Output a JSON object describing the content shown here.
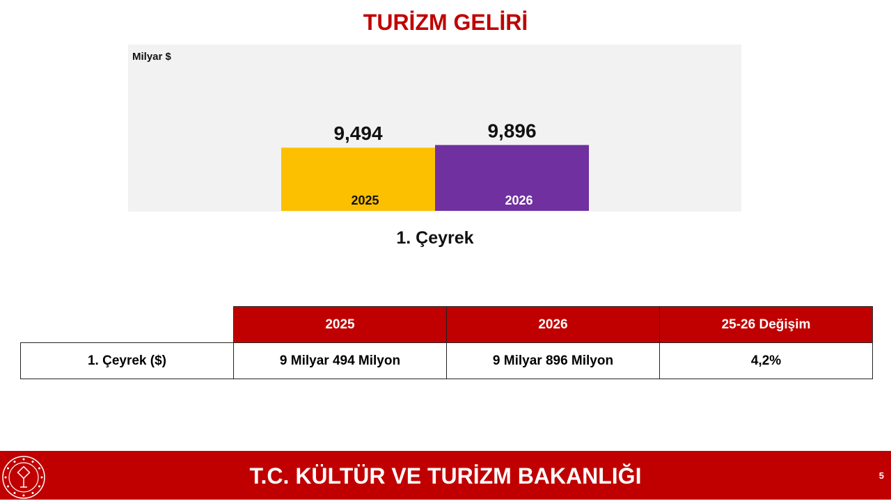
{
  "title": "TURİZM GELİRİ",
  "chart_data": {
    "type": "bar",
    "ylabel": "Milyar $",
    "xlabel": "1. Çeyrek",
    "categories": [
      "2025",
      "2026"
    ],
    "values": [
      9.494,
      9.896
    ],
    "data_labels": [
      "9,494",
      "9,896"
    ],
    "colors": [
      "#fcc000",
      "#7030a0"
    ],
    "category_label_colors": [
      "#111111",
      "#ffffff"
    ],
    "ylim": [
      0,
      25
    ],
    "grid": false
  },
  "table": {
    "headers": [
      "",
      "2025",
      "2026",
      "25-26 Değişim"
    ],
    "rows": [
      [
        "1. Çeyrek ($)",
        "9 Milyar 494 Milyon",
        "9 Milyar 896 Milyon",
        "4,2%"
      ]
    ]
  },
  "footer": {
    "text": "T.C. KÜLTÜR VE TURİZM BAKANLIĞI",
    "page": "5"
  },
  "colors": {
    "brand_red": "#c00000"
  },
  "logo_icon": "ministry-emblem-icon"
}
